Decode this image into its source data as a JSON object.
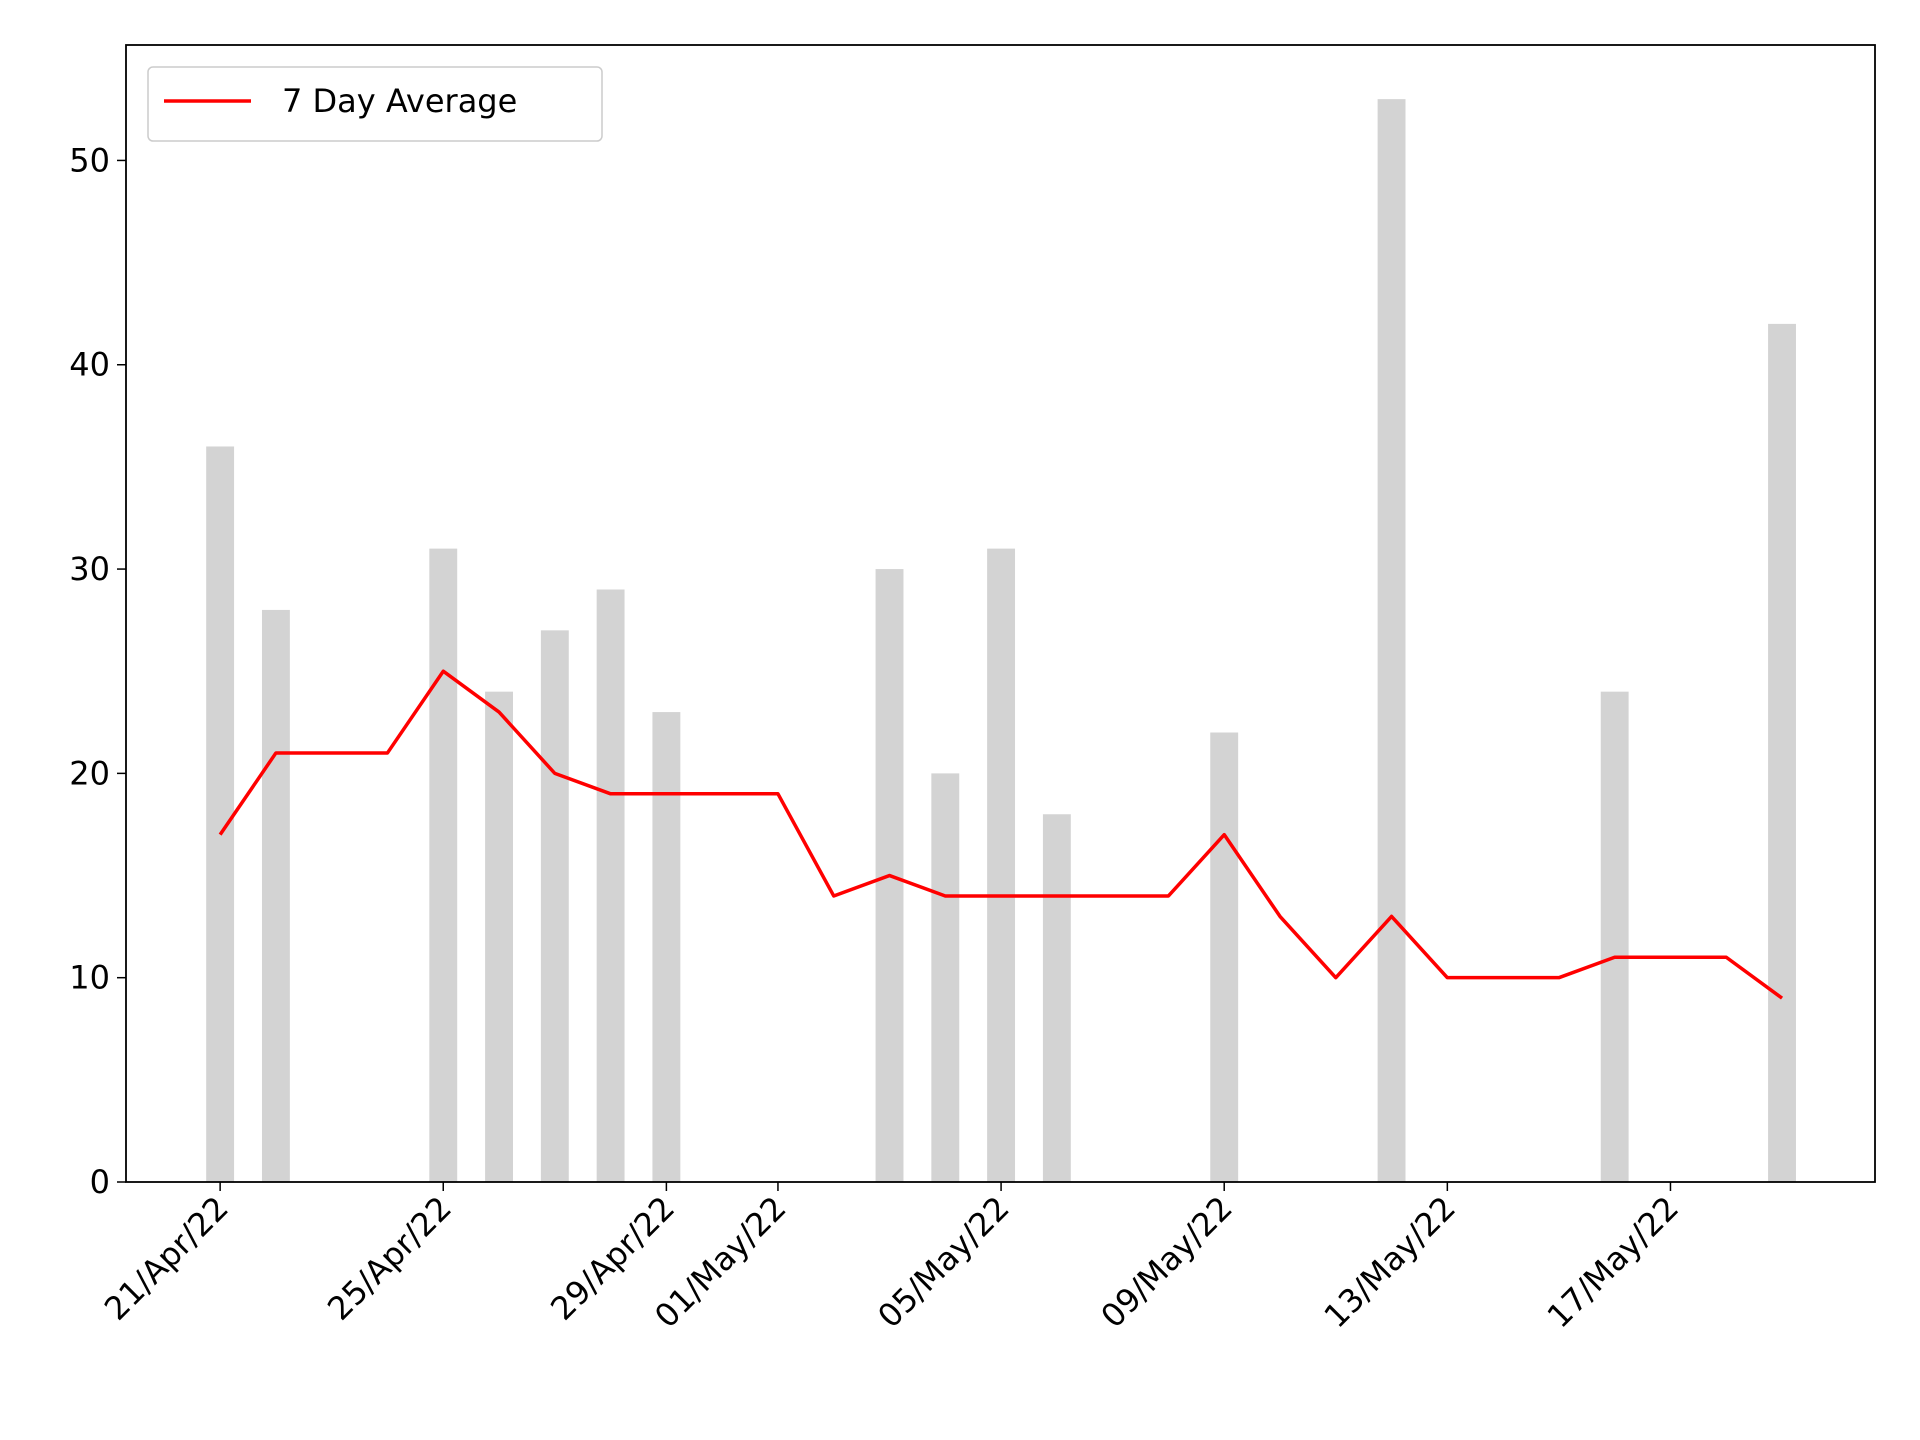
{
  "chart_data": {
    "type": "bar-line",
    "x": [
      "2022-04-21",
      "2022-04-22",
      "2022-04-23",
      "2022-04-24",
      "2022-04-25",
      "2022-04-26",
      "2022-04-27",
      "2022-04-28",
      "2022-04-29",
      "2022-04-30",
      "2022-05-01",
      "2022-05-02",
      "2022-05-03",
      "2022-05-04",
      "2022-05-05",
      "2022-05-06",
      "2022-05-07",
      "2022-05-08",
      "2022-05-09",
      "2022-05-10",
      "2022-05-11",
      "2022-05-12",
      "2022-05-13",
      "2022-05-14",
      "2022-05-15",
      "2022-05-16",
      "2022-05-17",
      "2022-05-18",
      "2022-05-19"
    ],
    "series": [
      {
        "type": "bar",
        "color": "#d3d3d3",
        "values": [
          36,
          28,
          0,
          0,
          31,
          24,
          27,
          29,
          23,
          0,
          0,
          0,
          30,
          20,
          31,
          18,
          0,
          0,
          22,
          0,
          0,
          53,
          0,
          0,
          0,
          24,
          0,
          0,
          42
        ]
      },
      {
        "type": "line",
        "name": "7 Day Average",
        "color": "#ff0000",
        "values": [
          17,
          21,
          21,
          21,
          25,
          23,
          20,
          19,
          19,
          19,
          19,
          14,
          15,
          14,
          14,
          14,
          14,
          14,
          17,
          13,
          10,
          13,
          10,
          10,
          10,
          11,
          11,
          11,
          9
        ]
      }
    ],
    "xlim": [
      "2022-04-19T07:30:00Z",
      "2022-05-20T16:00:00Z"
    ],
    "xticks": [
      {
        "value": "2022-04-21",
        "label": "21/Apr/22"
      },
      {
        "value": "2022-04-25",
        "label": "25/Apr/22"
      },
      {
        "value": "2022-04-29",
        "label": "29/Apr/22"
      },
      {
        "value": "2022-05-01",
        "label": "01/May/22"
      },
      {
        "value": "2022-05-05",
        "label": "05/May/22"
      },
      {
        "value": "2022-05-09",
        "label": "09/May/22"
      },
      {
        "value": "2022-05-13",
        "label": "13/May/22"
      },
      {
        "value": "2022-05-17",
        "label": "17/May/22"
      }
    ],
    "ylim": [
      0,
      55.65
    ],
    "yticks": [
      0,
      10,
      20,
      30,
      40,
      50
    ],
    "legend": "upper left"
  }
}
